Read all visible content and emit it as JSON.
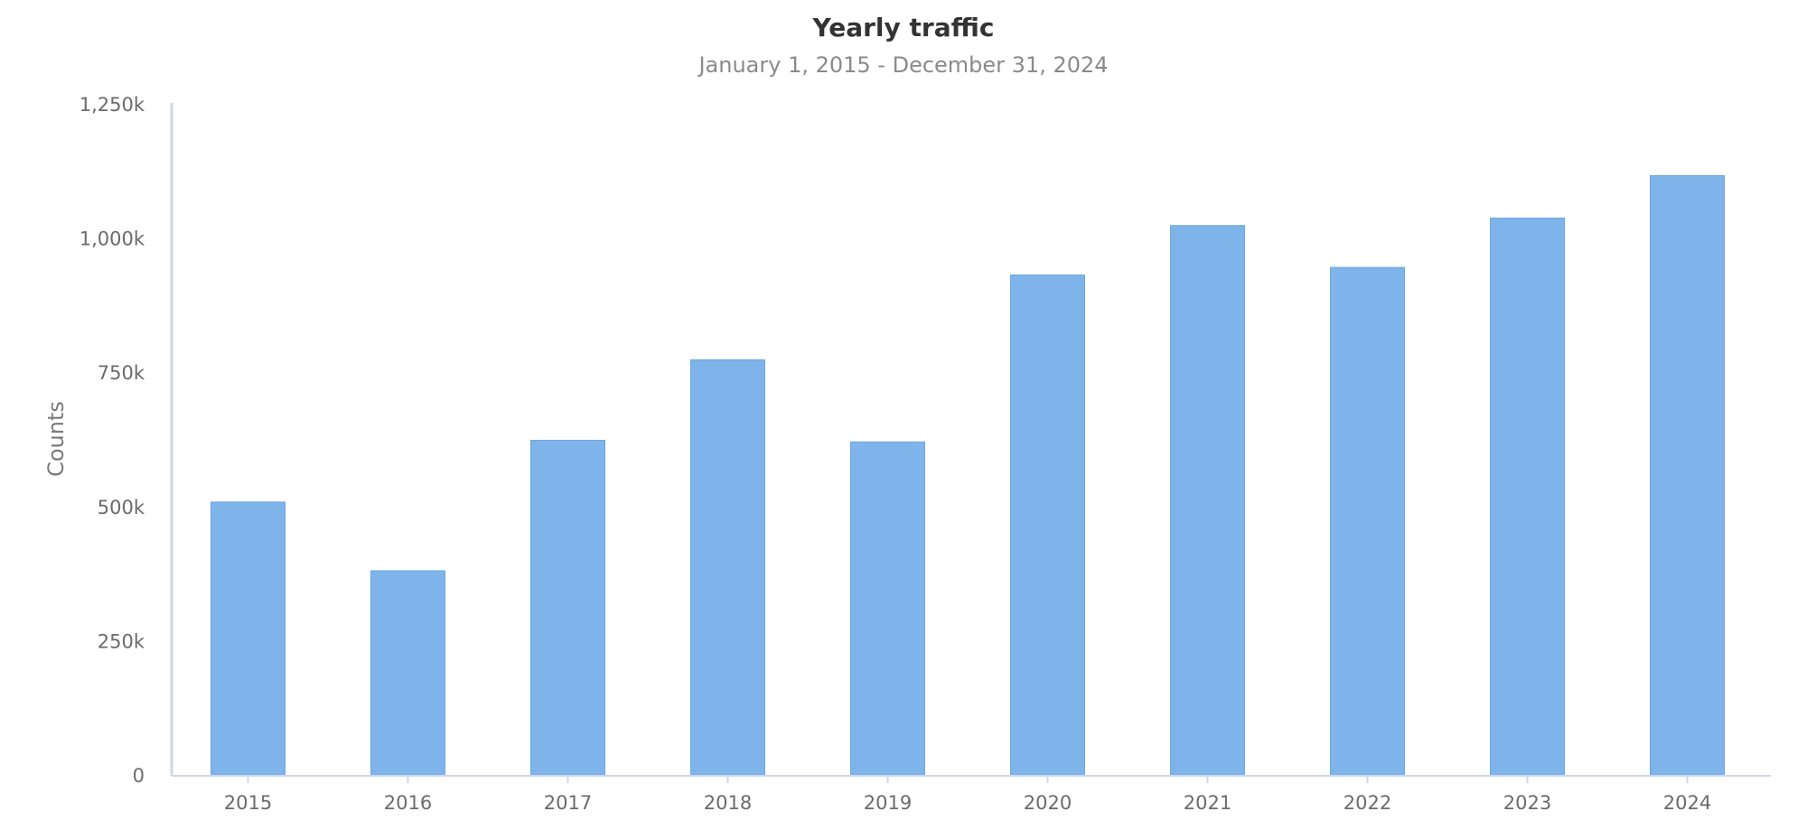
{
  "chart_data": {
    "type": "bar",
    "title": "Yearly traffic",
    "subtitle": "January 1, 2015 - December 31, 2024",
    "ylabel": "Counts",
    "xlabel": "",
    "categories": [
      "2015",
      "2016",
      "2017",
      "2018",
      "2019",
      "2020",
      "2021",
      "2022",
      "2023",
      "2024"
    ],
    "values": [
      510000,
      382000,
      625000,
      775000,
      622000,
      933000,
      1025000,
      947000,
      1039000,
      1118000
    ],
    "ylim": [
      0,
      1250000
    ],
    "yticks": [
      0,
      250000,
      500000,
      750000,
      1000000,
      1250000
    ],
    "ytick_labels": [
      "0",
      "250k",
      "500k",
      "750k",
      "1,000k",
      "1,250k"
    ],
    "grid": false,
    "legend": "none",
    "colors": {
      "bar": "#7eb4ea",
      "bar_edge": "#6fa6df",
      "axis": "#cfd6e6"
    }
  }
}
